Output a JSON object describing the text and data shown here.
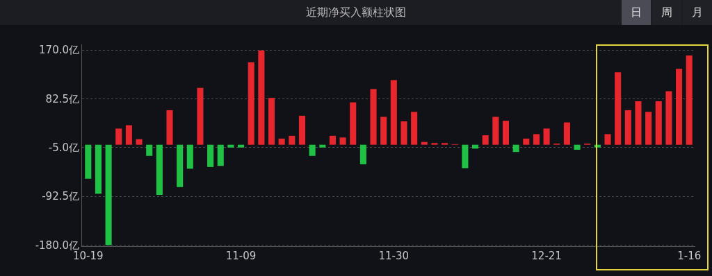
{
  "chart_data": {
    "type": "bar",
    "title": "近期净买入额柱状图",
    "annotations": [
      "日",
      "周",
      "月"
    ],
    "categories": [
      "10-19",
      null,
      null,
      null,
      null,
      null,
      null,
      null,
      null,
      null,
      null,
      null,
      null,
      null,
      null,
      "11-09",
      null,
      null,
      null,
      null,
      null,
      null,
      null,
      null,
      null,
      null,
      null,
      null,
      null,
      null,
      "11-30",
      null,
      null,
      null,
      null,
      null,
      null,
      null,
      null,
      null,
      null,
      null,
      null,
      null,
      null,
      "12-21",
      null,
      null,
      null,
      null,
      null,
      null,
      null,
      null,
      null,
      null,
      null,
      null,
      null,
      "1-16"
    ],
    "values": [
      -61,
      -88,
      -180,
      29,
      35,
      10,
      -20,
      -90,
      62,
      -76,
      -43,
      102,
      -40,
      -38,
      -5,
      -5,
      148,
      169,
      84,
      11,
      16,
      52,
      -20,
      -5,
      16,
      13,
      76,
      -35,
      100,
      50,
      116,
      42,
      59,
      5,
      3,
      3,
      1,
      -42,
      -7,
      17,
      50,
      43,
      -13,
      11,
      19,
      29,
      2,
      40,
      -9,
      2,
      -5,
      19,
      130,
      62,
      78,
      59,
      78,
      96,
      136,
      160
    ],
    "colors": [
      "#20c246",
      "#20c246",
      "#20c246",
      "#e8262d",
      "#e8262d",
      "#e8262d",
      "#20c246",
      "#20c246",
      "#e8262d",
      "#20c246",
      "#20c246",
      "#e8262d",
      "#20c246",
      "#20c246",
      "#20c246",
      "#20c246",
      "#e8262d",
      "#e8262d",
      "#e8262d",
      "#e8262d",
      "#e8262d",
      "#e8262d",
      "#20c246",
      "#20c246",
      "#e8262d",
      "#e8262d",
      "#e8262d",
      "#20c246",
      "#e8262d",
      "#e8262d",
      "#e8262d",
      "#e8262d",
      "#e8262d",
      "#e8262d",
      "#e8262d",
      "#e8262d",
      "#e8262d",
      "#20c246",
      "#20c246",
      "#e8262d",
      "#e8262d",
      "#e8262d",
      "#20c246",
      "#e8262d",
      "#e8262d",
      "#e8262d",
      "#e8262d",
      "#e8262d",
      "#20c246",
      "#e8262d",
      "#20c246",
      "#e8262d",
      "#e8262d",
      "#e8262d",
      "#e8262d",
      "#e8262d",
      "#e8262d",
      "#e8262d",
      "#e8262d",
      "#e8262d"
    ],
    "ylim": [
      -182,
      180
    ],
    "yticks": [
      {
        "value": 170,
        "label": "170.0亿"
      },
      {
        "value": 82.5,
        "label": "82.5亿"
      },
      {
        "value": -5,
        "label": "-5.0亿"
      },
      {
        "value": -92.5,
        "label": "-92.5亿"
      },
      {
        "value": -180,
        "label": "-180.0亿"
      }
    ],
    "grid": "y"
  }
}
